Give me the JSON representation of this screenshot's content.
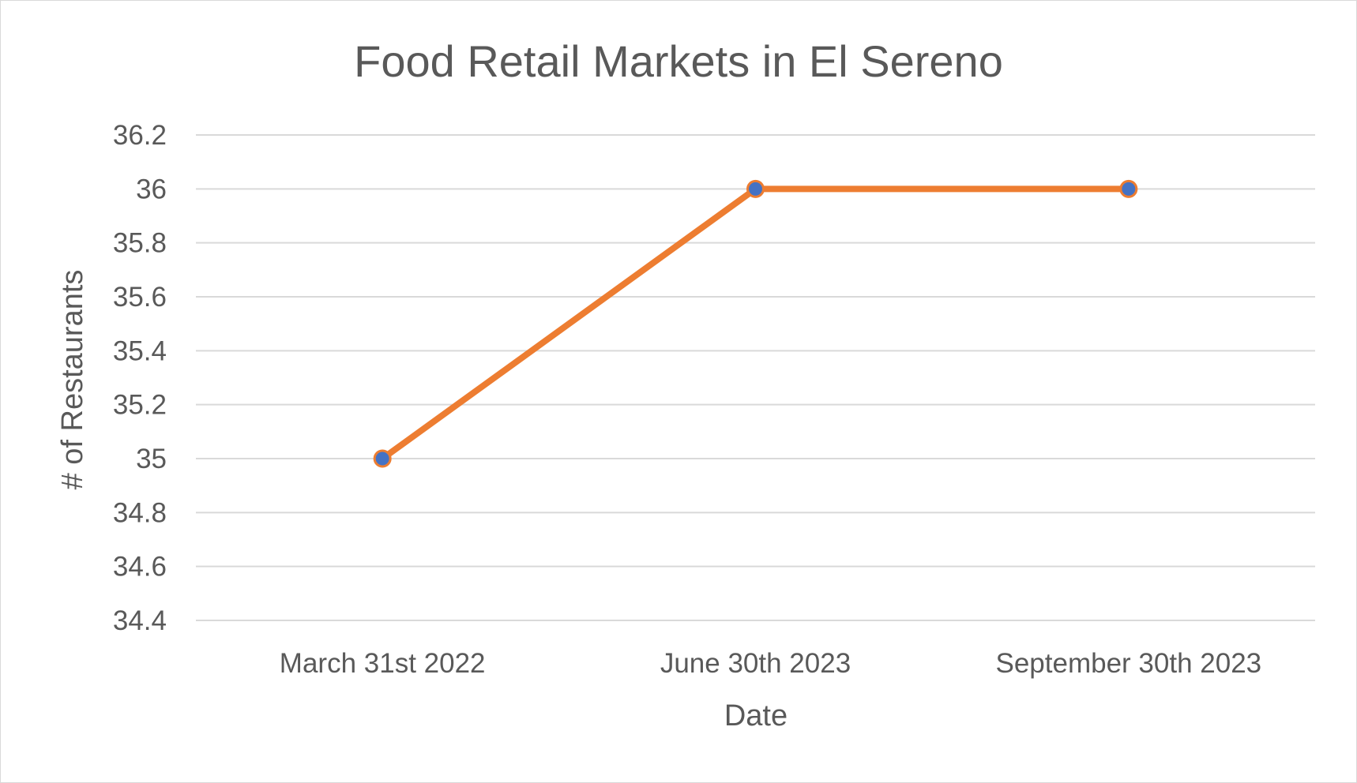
{
  "chart_data": {
    "type": "line",
    "title": "Food Retail Markets in El Sereno",
    "xlabel": "Date",
    "ylabel": "# of Restaurants",
    "categories": [
      "March 31st 2022",
      "June 30th 2023",
      "September 30th 2023"
    ],
    "series": [
      {
        "values": [
          35,
          36,
          36
        ],
        "line_color": "#ED7D31",
        "marker_color": "#4472C4"
      }
    ],
    "ylim": [
      34.4,
      36.2
    ],
    "yticks": [
      "36.2",
      "36",
      "35.8",
      "35.6",
      "35.4",
      "35.2",
      "35",
      "34.8",
      "34.6",
      "34.4"
    ],
    "grid": true,
    "legend": "none"
  }
}
